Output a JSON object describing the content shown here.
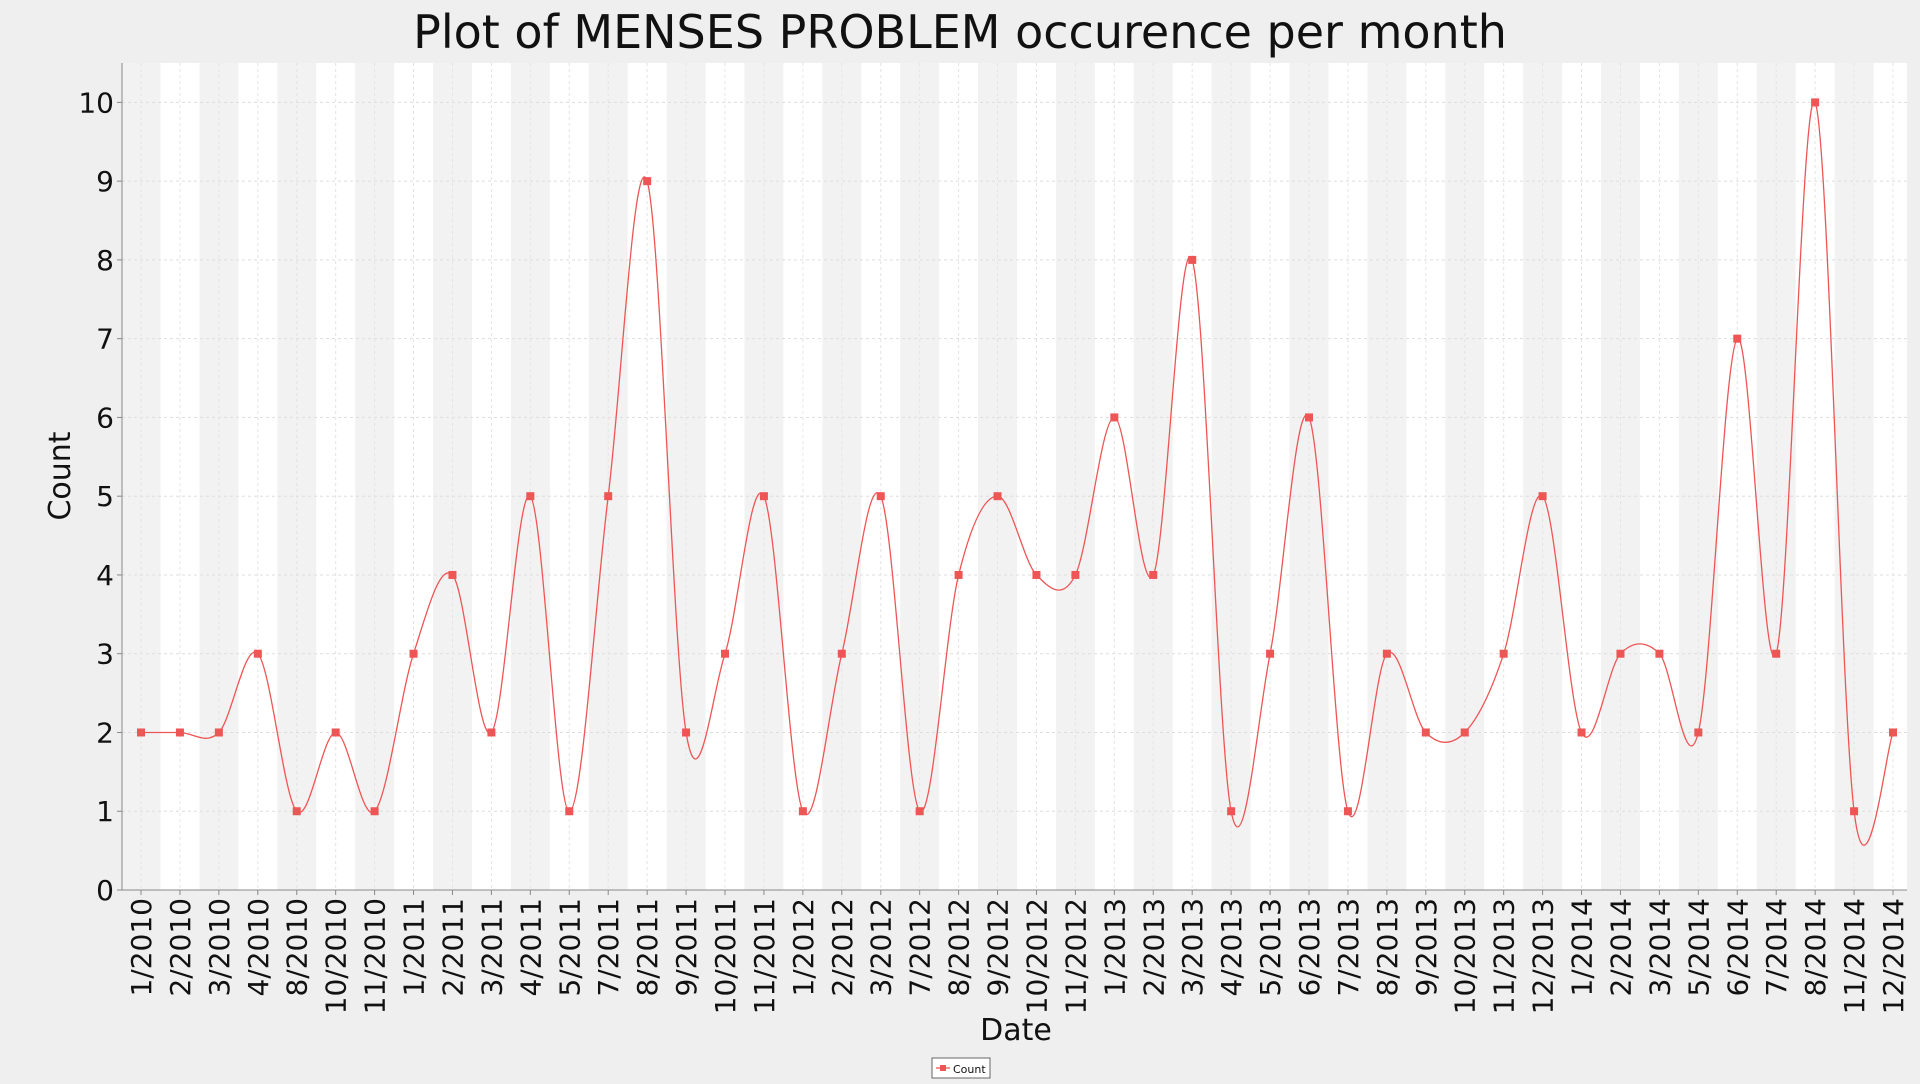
{
  "chart_data": {
    "type": "line",
    "title": "Plot of MENSES PROBLEM occurence per month",
    "xlabel": "Date",
    "ylabel": "Count",
    "ylim": [
      0,
      10.5
    ],
    "yticks": [
      0,
      1,
      2,
      3,
      4,
      5,
      6,
      7,
      8,
      9,
      10
    ],
    "grid": true,
    "legend_position": "bottom-center",
    "categories": [
      "1/2010",
      "2/2010",
      "3/2010",
      "4/2010",
      "8/2010",
      "10/2010",
      "11/2010",
      "1/2011",
      "2/2011",
      "3/2011",
      "4/2011",
      "5/2011",
      "7/2011",
      "8/2011",
      "9/2011",
      "10/2011",
      "11/2011",
      "1/2012",
      "2/2012",
      "3/2012",
      "7/2012",
      "8/2012",
      "9/2012",
      "10/2012",
      "11/2012",
      "1/2013",
      "2/2013",
      "3/2013",
      "4/2013",
      "5/2013",
      "6/2013",
      "7/2013",
      "8/2013",
      "9/2013",
      "10/2013",
      "11/2013",
      "12/2013",
      "1/2014",
      "2/2014",
      "3/2014",
      "5/2014",
      "6/2014",
      "7/2014",
      "8/2014",
      "11/2014",
      "12/2014"
    ],
    "series": [
      {
        "name": "Count",
        "color": "#ee5555",
        "values": [
          2,
          2,
          2,
          3,
          1,
          2,
          1,
          3,
          4,
          2,
          5,
          1,
          5,
          9,
          2,
          3,
          5,
          1,
          3,
          5,
          1,
          4,
          5,
          4,
          4,
          6,
          4,
          8,
          1,
          3,
          6,
          1,
          3,
          2,
          2,
          3,
          5,
          2,
          3,
          3,
          2,
          7,
          3,
          10,
          1,
          2
        ]
      }
    ]
  }
}
